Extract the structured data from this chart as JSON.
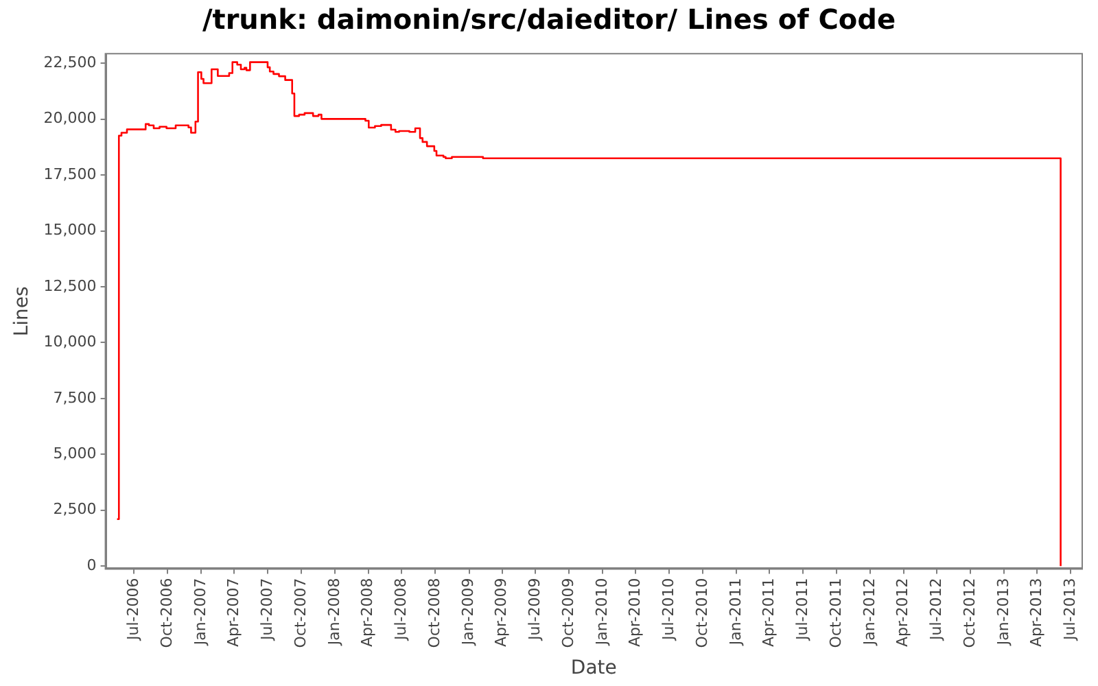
{
  "chart_data": {
    "type": "step",
    "title": "/trunk: daimonin/src/daieditor/ Lines of Code",
    "xlabel": "Date",
    "ylabel": "Lines",
    "x": [
      "2006-05-16",
      "2006-05-21",
      "2006-05-28",
      "2006-06-12",
      "2006-08-02",
      "2006-08-11",
      "2006-08-24",
      "2006-09-09",
      "2006-09-28",
      "2006-10-23",
      "2006-11-27",
      "2006-12-04",
      "2006-12-16",
      "2006-12-23",
      "2007-01-01",
      "2007-01-07",
      "2007-01-20",
      "2007-01-29",
      "2007-02-15",
      "2007-03-18",
      "2007-03-27",
      "2007-04-09",
      "2007-04-19",
      "2007-04-29",
      "2007-05-04",
      "2007-05-14",
      "2007-07-01",
      "2007-07-07",
      "2007-07-17",
      "2007-08-01",
      "2007-08-18",
      "2007-09-06",
      "2007-09-12",
      "2007-09-25",
      "2007-10-10",
      "2007-11-02",
      "2007-11-17",
      "2007-11-25",
      "2008-03-24",
      "2008-04-02",
      "2008-04-19",
      "2008-05-06",
      "2008-06-02",
      "2008-06-14",
      "2008-06-24",
      "2008-07-22",
      "2008-08-07",
      "2008-08-20",
      "2008-08-27",
      "2008-09-08",
      "2008-09-28",
      "2008-10-04",
      "2008-10-23",
      "2008-10-29",
      "2008-11-15",
      "2009-02-08",
      "2013-06-04"
    ],
    "series": [
      {
        "color": "#ff0000",
        "values": [
          2100,
          19260,
          19390,
          19540,
          19780,
          19720,
          19590,
          19660,
          19590,
          19720,
          19630,
          19390,
          19890,
          22100,
          21800,
          21610,
          21610,
          22230,
          21930,
          22060,
          22550,
          22440,
          22230,
          22300,
          22190,
          22550,
          22320,
          22130,
          22020,
          21920,
          21750,
          21150,
          20140,
          20200,
          20270,
          20140,
          20200,
          20010,
          19930,
          19620,
          19690,
          19740,
          19530,
          19430,
          19470,
          19430,
          19590,
          19150,
          18980,
          18790,
          18580,
          18370,
          18310,
          18250,
          18310,
          18250,
          0
        ]
      }
    ],
    "xlim": [
      "2006-04-16",
      "2013-07-31"
    ],
    "xticks": [
      {
        "value": "2006-07-01",
        "label": "Jul-2006"
      },
      {
        "value": "2006-10-01",
        "label": "Oct-2006"
      },
      {
        "value": "2007-01-01",
        "label": "Jan-2007"
      },
      {
        "value": "2007-04-01",
        "label": "Apr-2007"
      },
      {
        "value": "2007-07-01",
        "label": "Jul-2007"
      },
      {
        "value": "2007-10-01",
        "label": "Oct-2007"
      },
      {
        "value": "2008-01-01",
        "label": "Jan-2008"
      },
      {
        "value": "2008-04-01",
        "label": "Apr-2008"
      },
      {
        "value": "2008-07-01",
        "label": "Jul-2008"
      },
      {
        "value": "2008-10-01",
        "label": "Oct-2008"
      },
      {
        "value": "2009-01-01",
        "label": "Jan-2009"
      },
      {
        "value": "2009-04-01",
        "label": "Apr-2009"
      },
      {
        "value": "2009-07-01",
        "label": "Jul-2009"
      },
      {
        "value": "2009-10-01",
        "label": "Oct-2009"
      },
      {
        "value": "2010-01-01",
        "label": "Jan-2010"
      },
      {
        "value": "2010-04-01",
        "label": "Apr-2010"
      },
      {
        "value": "2010-07-01",
        "label": "Jul-2010"
      },
      {
        "value": "2010-10-01",
        "label": "Oct-2010"
      },
      {
        "value": "2011-01-01",
        "label": "Jan-2011"
      },
      {
        "value": "2011-04-01",
        "label": "Apr-2011"
      },
      {
        "value": "2011-07-01",
        "label": "Jul-2011"
      },
      {
        "value": "2011-10-01",
        "label": "Oct-2011"
      },
      {
        "value": "2012-01-01",
        "label": "Jan-2012"
      },
      {
        "value": "2012-04-01",
        "label": "Apr-2012"
      },
      {
        "value": "2012-07-01",
        "label": "Jul-2012"
      },
      {
        "value": "2012-10-01",
        "label": "Oct-2012"
      },
      {
        "value": "2013-01-01",
        "label": "Jan-2013"
      },
      {
        "value": "2013-04-01",
        "label": "Apr-2013"
      },
      {
        "value": "2013-07-01",
        "label": "Jul-2013"
      }
    ],
    "ylim": [
      -100,
      22900
    ],
    "yticks": [
      0,
      {
        "value": 2500,
        "label": "2,500"
      },
      {
        "value": 5000,
        "label": "5,000"
      },
      {
        "value": 7500,
        "label": "7,500"
      },
      {
        "value": 10000,
        "label": "10,000"
      },
      {
        "value": 12500,
        "label": "12,500"
      },
      {
        "value": 15000,
        "label": "15,000"
      },
      {
        "value": 17500,
        "label": "17,500"
      },
      {
        "value": 20000,
        "label": "20,000"
      },
      {
        "value": 22500,
        "label": "22,500"
      }
    ],
    "grid": false,
    "legend": false,
    "line_style": "solid",
    "marker": "none"
  }
}
